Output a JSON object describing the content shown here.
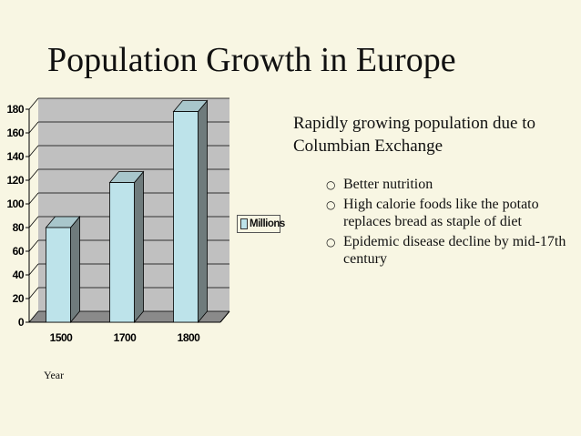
{
  "slide": {
    "title": "Population Growth in Europe",
    "lead": "Rapidly growing population due to Columbian Exchange",
    "bullets": [
      "Better nutrition",
      "High calorie foods like the potato replaces bread as staple of diet",
      "Epidemic disease decline by mid-17th century"
    ],
    "bullet_glyph": "○"
  },
  "chart_data": {
    "type": "bar",
    "categories": [
      "1500",
      "1700",
      "1800"
    ],
    "series": [
      {
        "name": "Millions",
        "values": [
          80,
          118,
          178
        ]
      }
    ],
    "title": "",
    "xlabel": "Year",
    "ylabel": "",
    "ylim": [
      0,
      180
    ],
    "yticks": [
      0,
      20,
      40,
      60,
      80,
      100,
      120,
      140,
      160,
      180
    ],
    "grid": true,
    "legend": "right",
    "style": "3d",
    "colors": {
      "bar_front": "#bde3ea",
      "bar_side": "#6f7b7c",
      "bar_top": "#a8c6cb",
      "wall": "#c0c0c0",
      "floor": "#8a8a8a"
    }
  }
}
